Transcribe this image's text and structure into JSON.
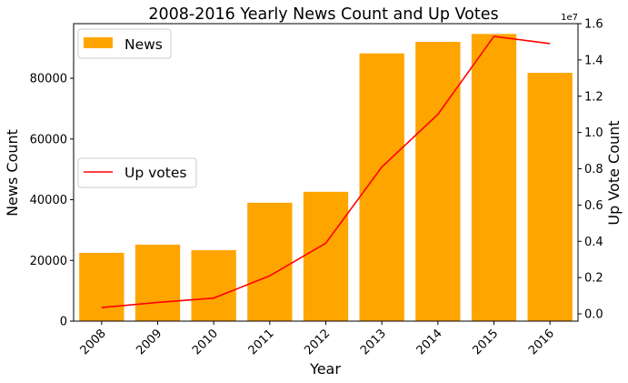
{
  "chart_data": {
    "type": "bar",
    "title": "2008-2016 Yearly News Count and Up Votes",
    "xlabel": "Year",
    "ylabel": "News Count",
    "y2label": "Up Vote Count",
    "y2_exponent": "1e7",
    "categories": [
      "2008",
      "2009",
      "2010",
      "2011",
      "2012",
      "2013",
      "2014",
      "2015",
      "2016"
    ],
    "ylim": [
      0,
      98000
    ],
    "y_ticks": [
      0,
      20000,
      40000,
      60000,
      80000
    ],
    "y_tick_labels": [
      "0",
      "20000",
      "40000",
      "60000",
      "80000"
    ],
    "y2lim": [
      -0.04,
      1.6
    ],
    "y2_ticks": [
      0.0,
      0.2,
      0.4,
      0.6,
      0.8,
      1.0,
      1.2,
      1.4,
      1.6
    ],
    "y2_tick_labels": [
      "0.0",
      "0.2",
      "0.4",
      "0.6",
      "0.8",
      "1.0",
      "1.2",
      "1.4",
      "1.6"
    ],
    "grid": false,
    "series": [
      {
        "name": "News",
        "type": "bar",
        "axis": "left",
        "color": "#FFA500",
        "values": [
          22500,
          25200,
          23400,
          39000,
          42600,
          88200,
          92000,
          94600,
          81800
        ]
      },
      {
        "name": "Up votes",
        "type": "line",
        "axis": "right",
        "color": "#FF0000",
        "values": [
          0.035,
          0.063,
          0.087,
          0.21,
          0.39,
          0.81,
          1.1,
          1.53,
          1.49
        ]
      }
    ],
    "legends": [
      {
        "series": "News",
        "placement": "top-left"
      },
      {
        "series": "Up votes",
        "placement": "center-left"
      }
    ]
  }
}
